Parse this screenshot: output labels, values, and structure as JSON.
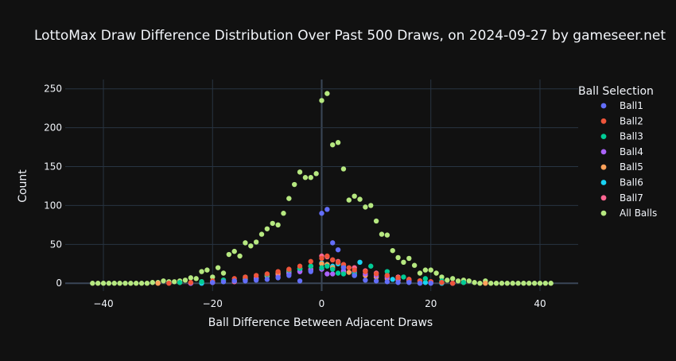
{
  "chart_data": {
    "type": "scatter",
    "title": "LottoMax Draw Difference Distribution Over Past 500 Draws, on 2024-09-27 by gameseer.net",
    "xlabel": "Ball Difference Between Adjacent Draws",
    "ylabel": "Count",
    "xlim": [
      -47,
      47
    ],
    "ylim": [
      -10,
      262
    ],
    "xticks": [
      -40,
      -20,
      0,
      20,
      40
    ],
    "yticks": [
      0,
      50,
      100,
      150,
      200,
      250
    ],
    "grid": true,
    "legend": {
      "title": "Ball Selection",
      "position": "right"
    },
    "series": [
      {
        "name": "Ball1",
        "color": "#636efa",
        "x": [
          -20,
          -18,
          -16,
          -14,
          -12,
          -10,
          -8,
          -6,
          -4,
          -2,
          0,
          1,
          2,
          3,
          4,
          6,
          8,
          10,
          12,
          14,
          16,
          18,
          20
        ],
        "y": [
          1,
          2,
          3,
          3,
          4,
          5,
          7,
          10,
          3,
          15,
          90,
          95,
          52,
          43,
          20,
          10,
          4,
          3,
          2,
          1,
          1,
          0,
          0
        ]
      },
      {
        "name": "Ball2",
        "color": "#ef553b",
        "x": [
          -28,
          -24,
          -20,
          -16,
          -14,
          -12,
          -10,
          -8,
          -6,
          -4,
          -2,
          0,
          1,
          2,
          3,
          4,
          5,
          6,
          8,
          10,
          12,
          14,
          16,
          18,
          20,
          22,
          24
        ],
        "y": [
          0,
          1,
          3,
          6,
          8,
          10,
          12,
          15,
          18,
          22,
          28,
          32,
          35,
          30,
          27,
          24,
          20,
          17,
          15,
          12,
          10,
          7,
          5,
          3,
          2,
          1,
          0
        ]
      },
      {
        "name": "Ball3",
        "color": "#00cc96",
        "x": [
          -26,
          -22,
          -18,
          -14,
          -10,
          -6,
          -4,
          -2,
          0,
          1,
          2,
          3,
          4,
          6,
          9,
          12,
          15,
          19,
          22,
          26
        ],
        "y": [
          1,
          2,
          4,
          8,
          11,
          17,
          19,
          22,
          20,
          22,
          18,
          13,
          12,
          12,
          22,
          15,
          8,
          6,
          3,
          1
        ]
      },
      {
        "name": "Ball4",
        "color": "#ab63fa",
        "x": [
          -24,
          -20,
          -16,
          -12,
          -8,
          -6,
          -4,
          -2,
          0,
          1,
          2,
          4,
          6,
          8,
          10,
          12,
          14,
          16,
          20,
          24
        ],
        "y": [
          0,
          1,
          3,
          6,
          8,
          12,
          15,
          17,
          18,
          12,
          12,
          16,
          14,
          12,
          10,
          8,
          5,
          3,
          1,
          0
        ]
      },
      {
        "name": "Ball5",
        "color": "#ffa15a",
        "x": [
          -30,
          -26,
          -22,
          -18,
          -14,
          -10,
          -8,
          -6,
          -4,
          -2,
          0,
          1,
          2,
          4,
          5,
          6,
          8,
          10,
          12,
          14,
          18,
          22,
          26,
          30
        ],
        "y": [
          0,
          1,
          2,
          4,
          7,
          10,
          13,
          16,
          19,
          22,
          25,
          24,
          20,
          15,
          14,
          12,
          10,
          8,
          6,
          4,
          3,
          2,
          1,
          0
        ]
      },
      {
        "name": "Ball6",
        "color": "#19d3f3",
        "x": [
          -22,
          -18,
          -14,
          -10,
          -6,
          -4,
          -2,
          0,
          1,
          2,
          3,
          4,
          6,
          7,
          10,
          13,
          16,
          19,
          22
        ],
        "y": [
          0,
          2,
          5,
          9,
          14,
          18,
          22,
          26,
          24,
          22,
          25,
          22,
          10,
          27,
          8,
          5,
          3,
          1,
          0
        ]
      },
      {
        "name": "Ball7",
        "color": "#ff6692",
        "x": [
          -24,
          -20,
          -16,
          -14,
          -12,
          -10,
          -8,
          -6,
          -4,
          -2,
          0,
          1,
          2,
          3,
          4,
          6,
          8,
          10,
          12,
          14,
          16,
          18,
          20,
          24
        ],
        "y": [
          0,
          1,
          2,
          5,
          7,
          9,
          11,
          13,
          15,
          18,
          35,
          34,
          30,
          28,
          24,
          20,
          16,
          13,
          10,
          8,
          5,
          3,
          2,
          0
        ]
      },
      {
        "name": "All Balls",
        "color": "#b6e880",
        "x": [
          -42,
          -41,
          -40,
          -39,
          -38,
          -37,
          -36,
          -35,
          -34,
          -33,
          -32,
          -31,
          -30,
          -29,
          -28,
          -27,
          -26,
          -25,
          -24,
          -23,
          -22,
          -21,
          -20,
          -19,
          -18,
          -17,
          -16,
          -15,
          -14,
          -13,
          -12,
          -11,
          -10,
          -9,
          -8,
          -7,
          -6,
          -5,
          -4,
          -3,
          -2,
          -1,
          0,
          1,
          2,
          3,
          4,
          5,
          6,
          7,
          8,
          9,
          10,
          11,
          12,
          13,
          14,
          15,
          16,
          17,
          18,
          19,
          20,
          21,
          22,
          23,
          24,
          25,
          26,
          27,
          28,
          29,
          30,
          31,
          32,
          33,
          34,
          35,
          36,
          37,
          38,
          39,
          40,
          41,
          42
        ],
        "y": [
          0,
          0,
          0,
          0,
          0,
          0,
          0,
          0,
          0,
          0,
          0,
          1,
          1,
          3,
          2,
          2,
          3,
          4,
          7,
          6,
          15,
          17,
          8,
          20,
          13,
          37,
          41,
          35,
          52,
          48,
          53,
          63,
          70,
          77,
          75,
          90,
          109,
          127,
          143,
          136,
          136,
          141,
          235,
          244,
          178,
          181,
          147,
          107,
          112,
          108,
          98,
          100,
          80,
          63,
          62,
          42,
          33,
          27,
          32,
          23,
          13,
          17,
          17,
          13,
          8,
          4,
          6,
          3,
          4,
          3,
          1,
          0,
          3,
          0,
          0,
          0,
          0,
          0,
          0,
          0,
          0,
          0,
          0,
          0,
          0
        ]
      }
    ]
  }
}
